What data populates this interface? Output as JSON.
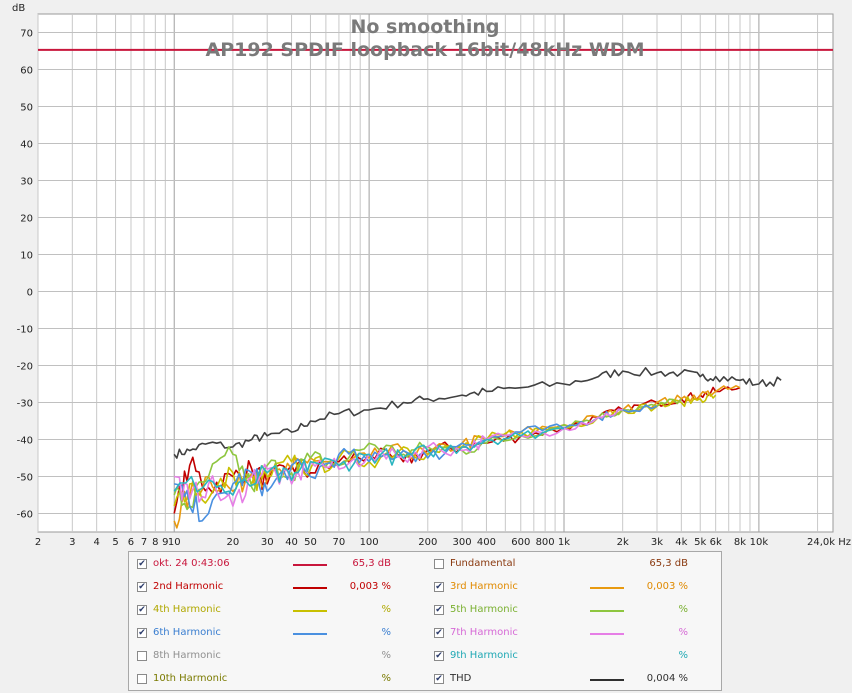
{
  "chart_data": {
    "type": "line",
    "title": "No smoothing",
    "subtitle": "AP192 SPDIF loopback 16bit/48kHz WDM",
    "ylabel": "dB",
    "xunit": "Hz",
    "xscale": "log",
    "xlim": [
      2,
      24000
    ],
    "ylim": [
      -65,
      75
    ],
    "grid": true,
    "yticks": [
      70,
      60,
      50,
      40,
      30,
      20,
      10,
      0,
      -10,
      -20,
      -30,
      -40,
      -50,
      -60
    ],
    "xticks": [
      {
        "v": 2,
        "label": "2"
      },
      {
        "v": 3,
        "label": "3"
      },
      {
        "v": 4,
        "label": "4"
      },
      {
        "v": 5,
        "label": "5"
      },
      {
        "v": 6,
        "label": "6"
      },
      {
        "v": 7,
        "label": "7"
      },
      {
        "v": 8,
        "label": "8"
      },
      {
        "v": 9,
        "label": "9"
      },
      {
        "v": 10,
        "label": "10"
      },
      {
        "v": 20,
        "label": "20"
      },
      {
        "v": 30,
        "label": "30"
      },
      {
        "v": 40,
        "label": "40"
      },
      {
        "v": 50,
        "label": "50"
      },
      {
        "v": 70,
        "label": "70"
      },
      {
        "v": 100,
        "label": "100"
      },
      {
        "v": 200,
        "label": "200"
      },
      {
        "v": 300,
        "label": "300"
      },
      {
        "v": 400,
        "label": "400"
      },
      {
        "v": 600,
        "label": "600"
      },
      {
        "v": 800,
        "label": "800"
      },
      {
        "v": 1000,
        "label": "1k"
      },
      {
        "v": 2000,
        "label": "2k"
      },
      {
        "v": 3000,
        "label": "3k"
      },
      {
        "v": 4000,
        "label": "4k"
      },
      {
        "v": 5000,
        "label": "5k"
      },
      {
        "v": 6000,
        "label": "6k"
      },
      {
        "v": 8000,
        "label": "8k"
      },
      {
        "v": 10000,
        "label": "10k"
      },
      {
        "v": 24000,
        "label": "24,0k Hz"
      }
    ],
    "series": [
      {
        "key": "fundamental",
        "color": "#c8163c",
        "x": [
          2,
          24000
        ],
        "y": [
          65.3,
          65.3
        ]
      },
      {
        "key": "thd",
        "color": "#404040",
        "x": [
          10,
          12,
          15,
          20,
          25,
          30,
          40,
          50,
          70,
          100,
          150,
          200,
          300,
          400,
          600,
          1000,
          1500,
          2000,
          3000,
          4000,
          5000,
          6000,
          8000,
          10000,
          13000
        ],
        "y": [
          -44,
          -43,
          -41,
          -42,
          -40,
          -39,
          -38,
          -35,
          -33,
          -32,
          -30,
          -29,
          -28,
          -27,
          -26,
          -25,
          -23,
          -21.5,
          -22,
          -22,
          -23,
          -23,
          -24,
          -25,
          -24
        ]
      },
      {
        "key": "h2",
        "color": "#c00000",
        "x": [
          10,
          12,
          15,
          20,
          25,
          30,
          40,
          50,
          70,
          100,
          150,
          200,
          300,
          400,
          600,
          1000,
          1500,
          2000,
          3000,
          4000,
          5000,
          6000,
          8000
        ],
        "y": [
          -60,
          -47,
          -53,
          -50,
          -48,
          -52,
          -47,
          -49,
          -46,
          -44,
          -46,
          -43,
          -42,
          -41,
          -39,
          -37,
          -34,
          -32,
          -30,
          -29,
          -28,
          -27,
          -26
        ]
      },
      {
        "key": "h3",
        "color": "#e89a10",
        "x": [
          10,
          12,
          15,
          20,
          25,
          30,
          40,
          50,
          70,
          100,
          150,
          200,
          300,
          400,
          600,
          1000,
          1500,
          2000,
          3000,
          4000,
          5000,
          6000,
          8000
        ],
        "y": [
          -62,
          -55,
          -50,
          -54,
          -49,
          -51,
          -48,
          -45,
          -47,
          -45,
          -43,
          -44,
          -41,
          -40,
          -38,
          -36,
          -34,
          -32,
          -30,
          -29,
          -28,
          -27,
          -26
        ]
      },
      {
        "key": "h4",
        "color": "#c8c000",
        "x": [
          10,
          12,
          15,
          20,
          25,
          30,
          40,
          50,
          70,
          100,
          150,
          200,
          300,
          400,
          600,
          1000,
          1500,
          2000,
          3000,
          4000,
          5000,
          6000
        ],
        "y": [
          -58,
          -52,
          -56,
          -49,
          -52,
          -50,
          -46,
          -48,
          -45,
          -46,
          -42,
          -44,
          -42,
          -40,
          -38,
          -37,
          -34,
          -32,
          -31,
          -30,
          -29,
          -28
        ]
      },
      {
        "key": "h5",
        "color": "#8ec63f",
        "x": [
          10,
          12,
          15,
          20,
          25,
          30,
          40,
          50,
          70,
          100,
          150,
          200,
          300,
          400,
          600,
          1000,
          1500,
          2000,
          3000,
          4000
        ],
        "y": [
          -55,
          -58,
          -50,
          -44,
          -53,
          -47,
          -49,
          -45,
          -47,
          -41,
          -44,
          -42,
          -43,
          -41,
          -39,
          -36,
          -34,
          -32,
          -31,
          -29
        ]
      },
      {
        "key": "h6",
        "color": "#4a90e0",
        "x": [
          10,
          12,
          15,
          20,
          25,
          30,
          40,
          50,
          70,
          100,
          150,
          200,
          300,
          400,
          600,
          1000,
          1500,
          2000,
          3000
        ],
        "y": [
          -52,
          -58,
          -60,
          -52,
          -49,
          -54,
          -47,
          -50,
          -44,
          -46,
          -43,
          -45,
          -41,
          -40,
          -38,
          -37,
          -34,
          -32,
          -31
        ]
      },
      {
        "key": "h7",
        "color": "#e67ee6",
        "x": [
          10,
          12,
          15,
          20,
          25,
          30,
          40,
          50,
          70,
          100,
          150,
          200,
          300,
          400,
          600,
          1000,
          1500,
          2000
        ],
        "y": [
          -50,
          -56,
          -52,
          -58,
          -50,
          -48,
          -52,
          -46,
          -48,
          -44,
          -45,
          -42,
          -43,
          -40,
          -39,
          -37,
          -34,
          -32
        ]
      },
      {
        "key": "h9",
        "color": "#2bb5c0",
        "x": [
          10,
          15,
          20,
          30,
          40,
          50,
          70,
          100,
          150,
          200,
          300,
          400,
          600,
          1000
        ],
        "y": [
          -54,
          -51,
          -55,
          -49,
          -51,
          -46,
          -47,
          -44,
          -45,
          -43,
          -42,
          -40,
          -39,
          -37
        ]
      }
    ]
  },
  "legend": {
    "rows": [
      [
        {
          "checked": true,
          "name": "okt. 24 0:43:06",
          "name_color": "#c8163c",
          "swatch": "#c8163c",
          "value": "65,3 dB",
          "value_color": "#c8163c"
        },
        {
          "checked": false,
          "name": "Fundamental",
          "name_color": "#8a3a10",
          "swatch": "",
          "value": "65,3 dB",
          "value_color": "#8a3a10"
        }
      ],
      [
        {
          "checked": true,
          "name": "2nd Harmonic",
          "name_color": "#c00000",
          "swatch": "#c00000",
          "value": "0,003 %",
          "value_color": "#c00000"
        },
        {
          "checked": true,
          "name": "3rd Harmonic",
          "name_color": "#e08a00",
          "swatch": "#e89a10",
          "value": "0,003 %",
          "value_color": "#e08a00"
        }
      ],
      [
        {
          "checked": true,
          "name": "4th Harmonic",
          "name_color": "#b0a800",
          "swatch": "#c8c000",
          "value": "%",
          "value_color": "#b0a800"
        },
        {
          "checked": true,
          "name": "5th Harmonic",
          "name_color": "#7ab030",
          "swatch": "#8ec63f",
          "value": "%",
          "value_color": "#7ab030"
        }
      ],
      [
        {
          "checked": true,
          "name": "6th Harmonic",
          "name_color": "#3a7ed0",
          "swatch": "#4a90e0",
          "value": "%",
          "value_color": "#3a7ed0"
        },
        {
          "checked": true,
          "name": "7th Harmonic",
          "name_color": "#d66ad6",
          "swatch": "#e67ee6",
          "value": "%",
          "value_color": "#d66ad6"
        }
      ],
      [
        {
          "checked": false,
          "name": "8th Harmonic",
          "name_color": "#909090",
          "swatch": "",
          "value": "%",
          "value_color": "#909090"
        },
        {
          "checked": true,
          "name": "9th Harmonic",
          "name_color": "#20a8b4",
          "swatch": "",
          "value": "%",
          "value_color": "#20a8b4"
        }
      ],
      [
        {
          "checked": false,
          "name": "10th Harmonic",
          "name_color": "#7a7a00",
          "swatch": "",
          "value": "%",
          "value_color": "#7a7a00"
        },
        {
          "checked": true,
          "name": "THD",
          "name_color": "#303030",
          "swatch": "#303030",
          "value": "0,004 %",
          "value_color": "#303030"
        }
      ]
    ]
  }
}
